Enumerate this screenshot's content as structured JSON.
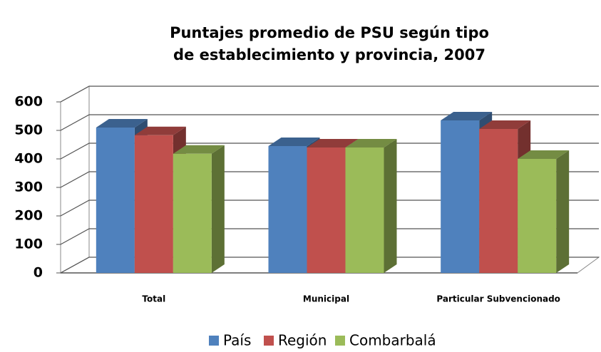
{
  "chart_data": {
    "type": "bar3d",
    "title": [
      "Puntajes promedio de PSU según tipo",
      "de establecimiento y provincia, 2007"
    ],
    "categories": [
      "Total",
      "Municipal",
      "Particular Subvencionado"
    ],
    "series": [
      {
        "name": "País",
        "color": "#4f81bd",
        "values": [
          510,
          445,
          535
        ]
      },
      {
        "name": "Región",
        "color": "#c0504d",
        "values": [
          483,
          440,
          505
        ]
      },
      {
        "name": "Combarbalá",
        "color": "#9bbb59",
        "values": [
          418,
          440,
          400
        ]
      }
    ],
    "ylim": [
      0,
      600
    ],
    "yticks": [
      0,
      100,
      200,
      300,
      400,
      500,
      600
    ],
    "grid": true,
    "legend": "bottom"
  }
}
